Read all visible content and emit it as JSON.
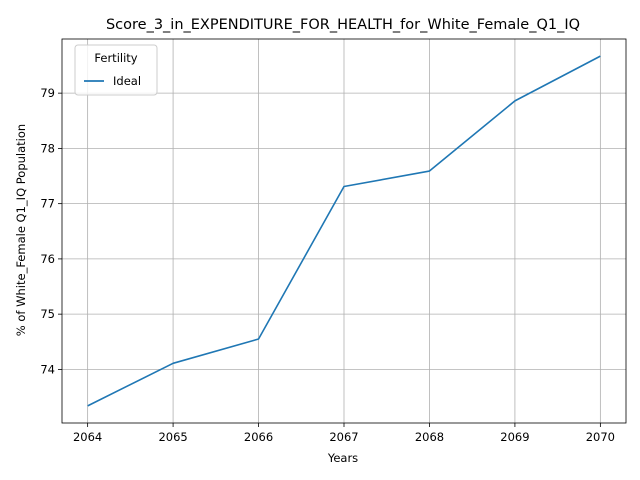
{
  "chart_data": {
    "type": "line",
    "title": "Score_3_in_EXPENDITURE_FOR_HEALTH_for_White_Female_Q1_IQ",
    "xlabel": "Years",
    "ylabel": "% of White_Female Q1_IQ Population",
    "x": [
      2064,
      2065,
      2066,
      2067,
      2068,
      2069,
      2070
    ],
    "series": [
      {
        "name": "Ideal",
        "color": "#1f77b4",
        "values": [
          73.34,
          74.11,
          74.55,
          77.31,
          77.59,
          78.86,
          79.67
        ]
      }
    ],
    "xlim": [
      2063.7,
      2070.3
    ],
    "ylim": [
      73.03,
      79.98
    ],
    "yticks": [
      74,
      75,
      76,
      77,
      78,
      79
    ],
    "grid": true,
    "legend": {
      "title": "Fertility",
      "position": "top-left"
    }
  }
}
